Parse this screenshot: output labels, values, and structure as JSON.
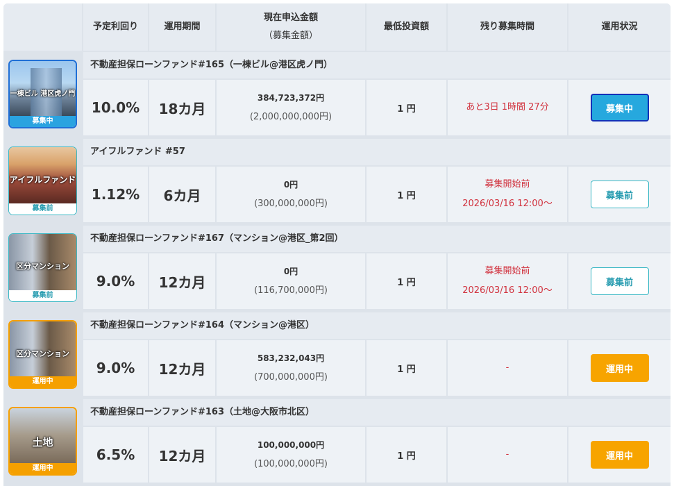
{
  "columns": [
    "予定利回り",
    "運用期間",
    "現在申込金額",
    "（募集金額）",
    "最低投資額",
    "残り募集時間",
    "運用状況"
  ],
  "funds": [
    {
      "title": "不動産担保ローンファンド#165（一棟ビル@港区虎ノ門）",
      "thumb_text": "一棟ビル 港区虎ノ門",
      "thumb_badge": "募集中",
      "yield": "10.0%",
      "period": "18カ月",
      "current": "384,723,372円",
      "target": "(2,000,000,000円)",
      "min": "1 円",
      "remain1": "あと3日 1時間 27分",
      "remain2": "",
      "status": "募集中",
      "status_type": "recruit"
    },
    {
      "title": "アイフルファンド #57",
      "thumb_text": "アイフルファンド",
      "thumb_badge": "募集前",
      "yield": "1.12%",
      "period": "6カ月",
      "current": "0円",
      "target": "(300,000,000円)",
      "min": "1 円",
      "remain1": "募集開始前",
      "remain2": "2026/03/16 12:00～",
      "status": "募集前",
      "status_type": "before"
    },
    {
      "title": "不動産担保ローンファンド#167（マンション@港区_第2回）",
      "thumb_text": "区分マンション",
      "thumb_badge": "募集前",
      "yield": "9.0%",
      "period": "12カ月",
      "current": "0円",
      "target": "(116,700,000円)",
      "min": "1 円",
      "remain1": "募集開始前",
      "remain2": "2026/03/16 12:00～",
      "status": "募集前",
      "status_type": "before"
    },
    {
      "title": "不動産担保ローンファンド#164（マンション@港区）",
      "thumb_text": "区分マンション",
      "thumb_badge": "運用中",
      "yield": "9.0%",
      "period": "12カ月",
      "current": "583,232,043円",
      "target": "(700,000,000円)",
      "min": "1 円",
      "remain1": "-",
      "remain2": "",
      "status": "運用中",
      "status_type": "running"
    },
    {
      "title": "不動産担保ローンファンド#163（土地@大阪市北区）",
      "thumb_text": "土地",
      "thumb_badge": "運用中",
      "yield": "6.5%",
      "period": "12カ月",
      "current": "100,000,000円",
      "target": "(100,000,000円)",
      "min": "1 円",
      "remain1": "-",
      "remain2": "",
      "status": "運用中",
      "status_type": "running"
    }
  ]
}
